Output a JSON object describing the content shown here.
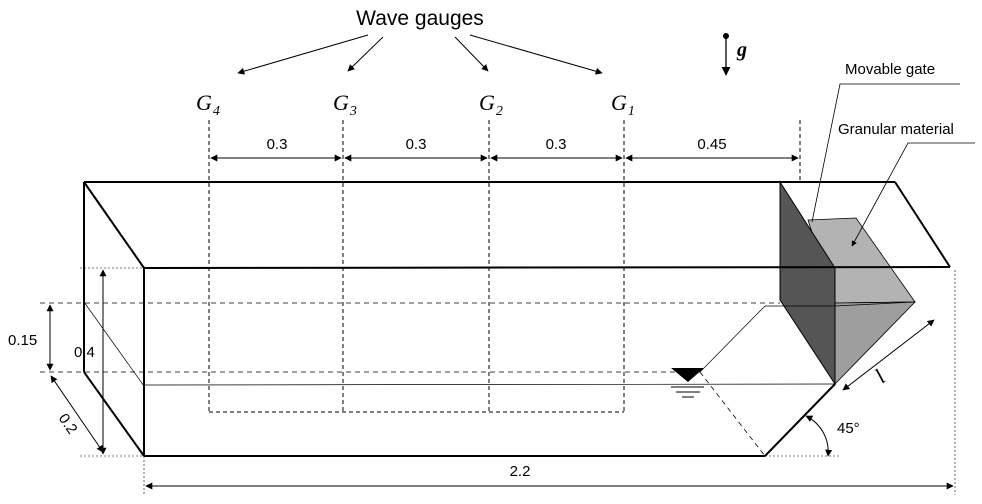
{
  "title": "Wave gauges",
  "gauges": [
    {
      "letter": "G",
      "sub": "4"
    },
    {
      "letter": "G",
      "sub": "3"
    },
    {
      "letter": "G",
      "sub": "2"
    },
    {
      "letter": "G",
      "sub": "1"
    }
  ],
  "spacings": [
    "0.3",
    "0.3",
    "0.3",
    "0.45"
  ],
  "gravity": "g",
  "labels": {
    "movable_gate": "Movable gate",
    "granular_material": "Granular material"
  },
  "dimensions": {
    "water_depth": "0.15",
    "height": "0.4",
    "width": "0.2",
    "length": "2.2",
    "slope_length": "l",
    "angle": "45°"
  },
  "colors": {
    "gate": "#555555",
    "granular_light": "#b0b0b0",
    "granular_dark": "#9a9a9a",
    "line": "#000000"
  }
}
